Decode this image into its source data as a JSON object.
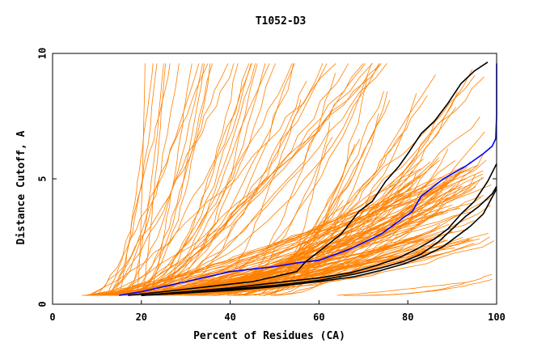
{
  "chart_data": {
    "type": "line",
    "title": "T1052-D3",
    "xlabel": "Percent of Residues (CA)",
    "ylabel": "Distance Cutoff, A",
    "xlim": [
      0,
      100
    ],
    "ylim": [
      0,
      10
    ],
    "x_ticks": [
      "0",
      "20",
      "40",
      "60",
      "80",
      "100"
    ],
    "y_ticks": [
      "0",
      "5",
      "10"
    ],
    "grid": false,
    "legend": "none",
    "colors": {
      "background_models": "#ff8000",
      "highlighted_black": "#000000",
      "highlighted_blue": "#0000ff",
      "axes": "#000000"
    },
    "background_groups": [
      {
        "name": "",
        "count": 40,
        "x_start_range": [
          8,
          22
        ],
        "y_start": 0.35,
        "x_end_range": [
          18,
          75
        ],
        "y_end": 9.6
      },
      {
        "name": "",
        "count": 90,
        "x_start_range": [
          6,
          22
        ],
        "y_start": 0.35,
        "x_end_range": [
          80,
          100
        ],
        "y_end_range": [
          2.0,
          5.8
        ]
      },
      {
        "name": "",
        "count": 30,
        "x_start_range": [
          28,
          50
        ],
        "y_start": 0.35,
        "x_end_range": [
          55,
          100
        ],
        "y_end_range": [
          4,
          9.6
        ]
      },
      {
        "name": "",
        "count": 3,
        "x_start_range": [
          61,
          69
        ],
        "y_start": 0.35,
        "x_end_range": [
          92,
          100
        ],
        "y_end_range": [
          0.8,
          1.2
        ]
      }
    ],
    "series": [
      {
        "color": "#0000ff",
        "x": [
          15,
          20,
          30,
          40,
          50,
          55,
          60,
          67,
          74,
          81,
          83,
          88,
          93,
          97,
          99,
          99.8,
          100,
          100
        ],
        "y": [
          0.35,
          0.5,
          0.9,
          1.3,
          1.5,
          1.65,
          1.75,
          2.2,
          2.8,
          3.7,
          4.3,
          5.0,
          5.5,
          6.0,
          6.3,
          6.6,
          7.5,
          9.6
        ]
      },
      {
        "color": "#000000",
        "x": [
          17,
          25,
          35,
          45,
          55,
          57,
          60,
          65,
          69,
          72,
          75,
          78,
          80,
          83,
          86,
          89,
          92,
          95,
          98
        ],
        "y": [
          0.35,
          0.5,
          0.7,
          0.9,
          1.3,
          1.7,
          2.1,
          2.8,
          3.7,
          4.1,
          4.9,
          5.5,
          6.0,
          6.8,
          7.3,
          8.0,
          8.8,
          9.3,
          9.65
        ]
      },
      {
        "color": "#000000",
        "x": [
          20,
          30,
          40,
          50,
          60,
          67,
          73,
          78,
          82,
          86,
          89,
          92,
          95,
          98,
          100
        ],
        "y": [
          0.35,
          0.5,
          0.65,
          0.85,
          1.05,
          1.25,
          1.55,
          1.85,
          2.2,
          2.6,
          3.0,
          3.6,
          4.1,
          4.9,
          5.6
        ]
      },
      {
        "color": "#000000",
        "x": [
          20,
          30,
          40,
          50,
          60,
          68,
          74,
          79,
          83,
          87,
          90,
          93,
          96,
          99,
          100
        ],
        "y": [
          0.35,
          0.45,
          0.6,
          0.75,
          0.95,
          1.2,
          1.45,
          1.7,
          2.0,
          2.5,
          3.0,
          3.5,
          3.9,
          4.4,
          4.7
        ]
      },
      {
        "color": "#000000",
        "x": [
          20,
          30,
          40,
          50,
          60,
          68,
          74,
          79,
          84,
          88,
          91,
          94,
          97,
          100
        ],
        "y": [
          0.35,
          0.45,
          0.55,
          0.7,
          0.9,
          1.1,
          1.35,
          1.6,
          1.95,
          2.3,
          2.7,
          3.1,
          3.6,
          4.6
        ]
      }
    ]
  }
}
